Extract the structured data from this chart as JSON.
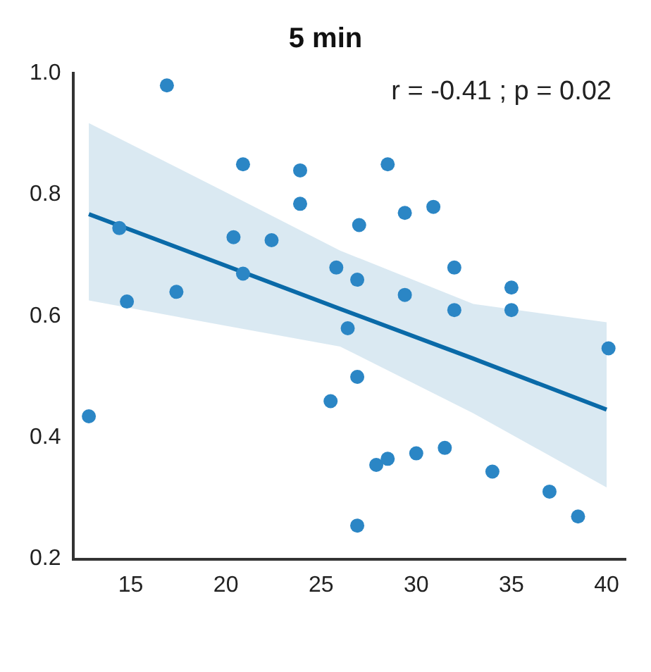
{
  "chart_data": {
    "type": "scatter",
    "title": "5 min",
    "annotations": [
      "r = -0.41 ; p = 0.02"
    ],
    "xlim": [
      12,
      41
    ],
    "xticks": [
      15,
      20,
      25,
      30,
      35,
      40
    ],
    "ylim": [
      0.2,
      1.0
    ],
    "yticks": [
      0.2,
      0.4,
      0.6,
      0.8,
      {
        "value": 1.0,
        "label": "1.0"
      }
    ],
    "grid": false,
    "legend": false,
    "marker": "circle",
    "series": [
      {
        "color": "#2b86c5",
        "x": [
          12.8,
          14.4,
          14.8,
          16.9,
          17.4,
          20.4,
          20.9,
          20.9,
          22.4,
          23.9,
          23.9,
          25.8,
          27.0,
          26.9,
          26.4,
          26.9,
          25.5,
          28.5,
          29.4,
          30.9,
          29.4,
          32.0,
          32.0,
          26.9,
          27.9,
          28.5,
          30.0,
          31.5,
          34.0,
          35.0,
          35.0,
          40.1,
          37.0,
          38.5
        ],
        "values": [
          0.435,
          0.745,
          0.624,
          0.98,
          0.64,
          0.73,
          0.85,
          0.67,
          0.725,
          0.84,
          0.785,
          0.68,
          0.75,
          0.66,
          0.58,
          0.5,
          0.46,
          0.85,
          0.77,
          0.78,
          0.635,
          0.68,
          0.61,
          0.255,
          0.355,
          0.365,
          0.374,
          0.383,
          0.344,
          0.647,
          0.61,
          0.547,
          0.311,
          0.27
        ]
      },
      {
        "type": "line",
        "color": "#0a6aa8",
        "marker": "none",
        "x": [
          12.8,
          20,
          26,
          33,
          40
        ],
        "values": [
          0.768,
          0.683,
          0.612,
          0.53,
          0.446
        ],
        "lower": [
          0.626,
          0.584,
          0.55,
          0.44,
          0.318
        ],
        "upper": [
          0.918,
          0.804,
          0.708,
          0.62,
          0.59
        ]
      }
    ]
  }
}
